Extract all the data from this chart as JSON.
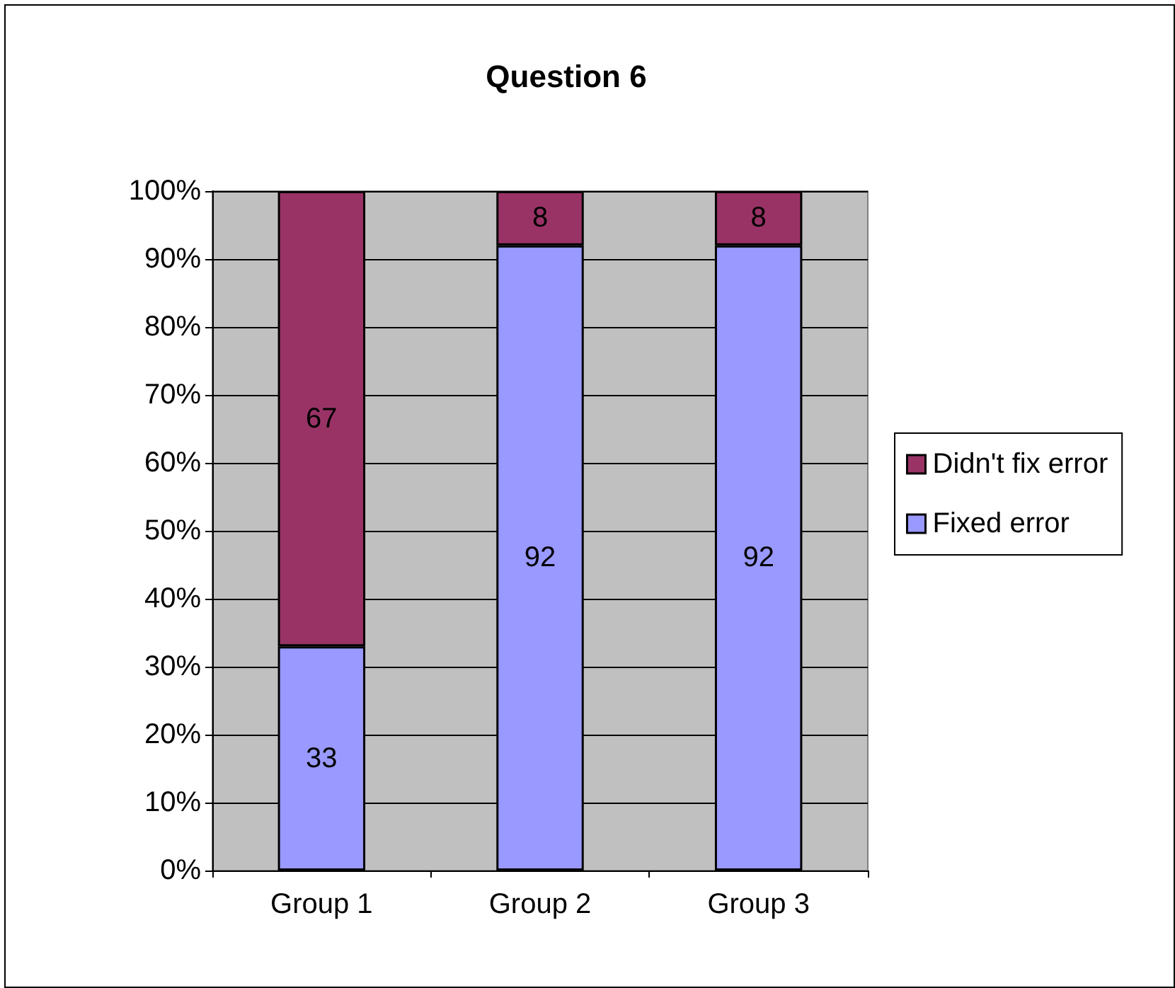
{
  "chart_data": {
    "type": "bar",
    "title": "Question 6",
    "stacked": true,
    "data_labels": true,
    "categories": [
      "Group 1",
      "Group 2",
      "Group 3"
    ],
    "series": [
      {
        "name": "Fixed error",
        "color": "#9999ff",
        "values": [
          33,
          92,
          92
        ]
      },
      {
        "name": "Didn't fix error",
        "color": "#993366",
        "values": [
          67,
          8,
          8
        ]
      }
    ],
    "ylim": [
      0,
      100
    ],
    "yticks": [
      {
        "value": 0,
        "label": "0%"
      },
      {
        "value": 10,
        "label": "10%"
      },
      {
        "value": 20,
        "label": "20%"
      },
      {
        "value": 30,
        "label": "30%"
      },
      {
        "value": 40,
        "label": "40%"
      },
      {
        "value": 50,
        "label": "50%"
      },
      {
        "value": 60,
        "label": "60%"
      },
      {
        "value": 70,
        "label": "70%"
      },
      {
        "value": 80,
        "label": "80%"
      },
      {
        "value": 90,
        "label": "90%"
      },
      {
        "value": 100,
        "label": "100%"
      }
    ],
    "grid": "y",
    "legend": "right"
  }
}
